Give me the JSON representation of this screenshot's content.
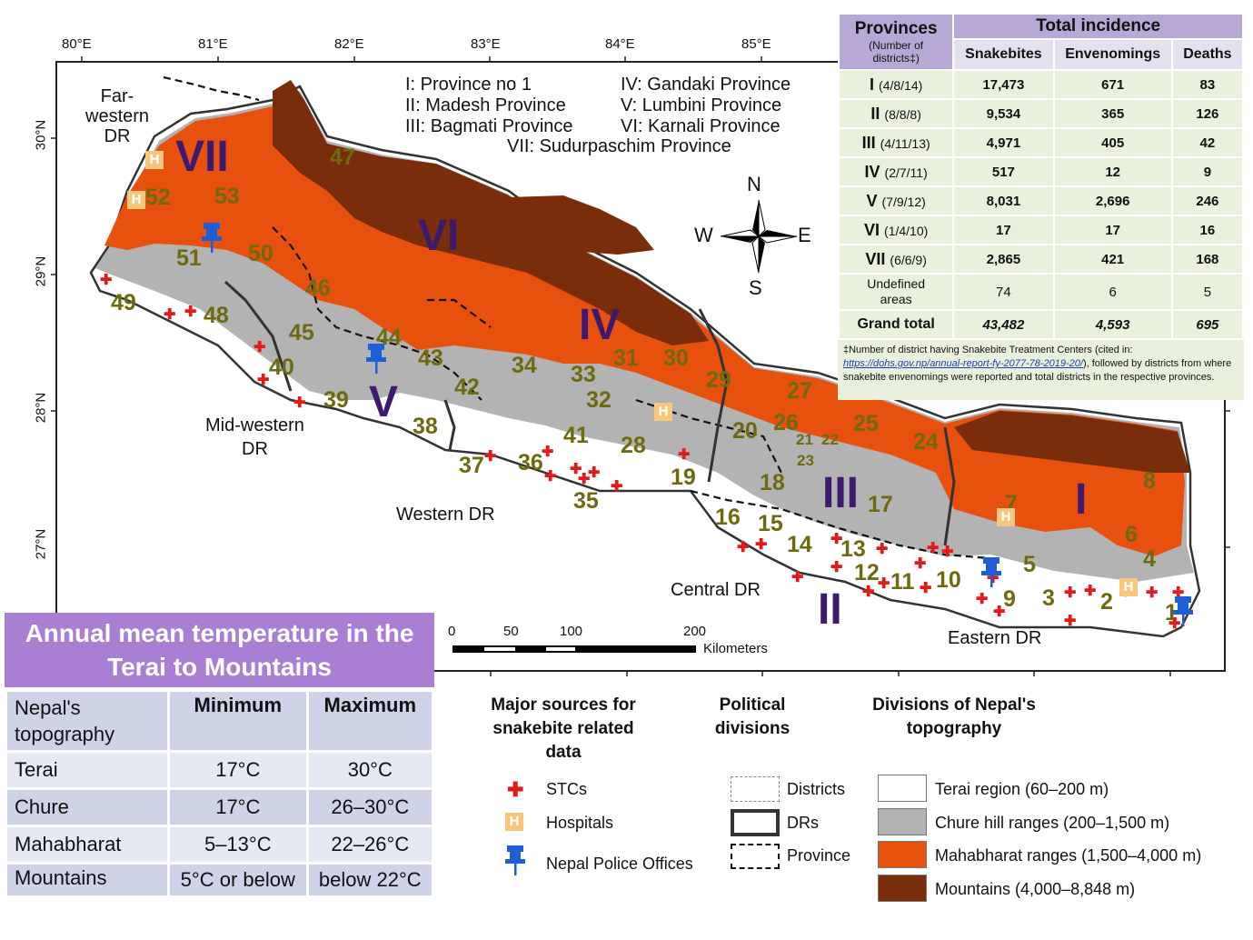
{
  "map": {
    "lon_labels": [
      "80°E",
      "81°E",
      "82°E",
      "83°E",
      "84°E",
      "85°E"
    ],
    "lat_labels": [
      "30°N",
      "29°N",
      "28°N",
      "27°N"
    ],
    "province_key": [
      "I: Province no 1",
      "II: Madesh Province",
      "III: Bagmati Province",
      "IV: Gandaki Province",
      "V: Lumbini Province",
      "VI: Karnali Province",
      "VII: Sudurpaschim Province"
    ],
    "province_numerals": [
      "I",
      "II",
      "III",
      "IV",
      "V",
      "VI",
      "VII"
    ],
    "dr_labels": [
      "Far-western DR",
      "Mid-western DR",
      "Western DR",
      "Central DR",
      "Eastern DR"
    ],
    "dr_lines": {
      "far_western": [
        "Far-",
        "western",
        "DR"
      ],
      "mid_western": [
        "Mid-western",
        "DR"
      ]
    },
    "district_numbers": [
      "1",
      "2",
      "3",
      "4",
      "5",
      "6",
      "7",
      "8",
      "9",
      "10",
      "11",
      "12",
      "13",
      "14",
      "15",
      "16",
      "17",
      "18",
      "19",
      "20",
      "21",
      "22",
      "23",
      "24",
      "25",
      "26",
      "27",
      "28",
      "29",
      "30",
      "31",
      "32",
      "33",
      "34",
      "35",
      "36",
      "37",
      "38",
      "39",
      "40",
      "41",
      "42",
      "43",
      "44",
      "45",
      "46",
      "47",
      "48",
      "49",
      "50",
      "51",
      "52",
      "53"
    ],
    "compass": {
      "n": "N",
      "s": "S",
      "e": "E",
      "w": "W"
    },
    "scale": {
      "ticks": [
        "0",
        "50",
        "100",
        "200"
      ],
      "unit": "Kilometers"
    },
    "colors": {
      "terai": "#ffffff",
      "chure": "#b3b3b3",
      "mahabharat": "#e8500e",
      "mountains": "#7a2d0a",
      "district_number": "#6d6a0f",
      "province_numeral": "#3d1a6e",
      "stc": "#e31a1c",
      "hospital": "#f7c77e",
      "police": "#1f5fd6"
    }
  },
  "incidence_table": {
    "header_provinces": "Provinces",
    "header_provinces_sub": "(Number of districts‡)",
    "header_total": "Total incidence",
    "columns": [
      "Snakebites",
      "Envenomings",
      "Deaths"
    ],
    "rows": [
      {
        "province": "I",
        "counts": "(4/8/14)",
        "snakebites": "17,473",
        "envenomings": "671",
        "deaths": "83"
      },
      {
        "province": "II",
        "counts": "(8/8/8)",
        "snakebites": "9,534",
        "envenomings": "365",
        "deaths": "126"
      },
      {
        "province": "III",
        "counts": "(4/11/13)",
        "snakebites": "4,971",
        "envenomings": "405",
        "deaths": "42"
      },
      {
        "province": "IV",
        "counts": "(2/7/11)",
        "snakebites": "517",
        "envenomings": "12",
        "deaths": "9"
      },
      {
        "province": "V",
        "counts": "(7/9/12)",
        "snakebites": "8,031",
        "envenomings": "2,696",
        "deaths": "246"
      },
      {
        "province": "VI",
        "counts": "(1/4/10)",
        "snakebites": "17",
        "envenomings": "17",
        "deaths": "16"
      },
      {
        "province": "VII",
        "counts": "(6/6/9)",
        "snakebites": "2,865",
        "envenomings": "421",
        "deaths": "168"
      }
    ],
    "undefined_row": {
      "label": "Undefined areas",
      "snakebites": "74",
      "envenomings": "6",
      "deaths": "5"
    },
    "grand_total": {
      "label": "Grand total",
      "snakebites": "43,482",
      "envenomings": "4,593",
      "deaths": "695"
    },
    "footnote_prefix": "‡Number of district having Snakebite Treatment Centers (cited in: ",
    "footnote_link": "https://dohs.gov.np/annual-report-fy-2077-78-2019-20/",
    "footnote_suffix": "), followed by districts from where snakebite envenomings were reported and total districts in the respective provinces."
  },
  "temperature": {
    "title": "Annual mean temperature in the Terai to Mountains",
    "headers": [
      "Nepal's topography",
      "Minimum",
      "Maximum"
    ],
    "rows": [
      {
        "zone": "Terai",
        "min": "17°C",
        "max": "30°C"
      },
      {
        "zone": "Chure",
        "min": "17°C",
        "max": "26–30°C"
      },
      {
        "zone": "Mahabharat",
        "min": "5–13°C",
        "max": "22–26°C"
      },
      {
        "zone": "Mountains",
        "min": "5°C or below",
        "max": "below 22°C"
      }
    ]
  },
  "legend": {
    "sources_title": "Major sources for snakebite related data",
    "political_title": "Political divisions",
    "topography_title": "Divisions of Nepal's topography",
    "sources": [
      "STCs",
      "Hospitals",
      "Nepal Police Offices"
    ],
    "political": [
      "Districts",
      "DRs",
      "Province"
    ],
    "topography": [
      "Terai region (60–200 m)",
      "Chure hill ranges (200–1,500 m)",
      "Mahabharat ranges (1,500–4,000 m)",
      "Mountains (4,000–8,848 m)"
    ]
  }
}
